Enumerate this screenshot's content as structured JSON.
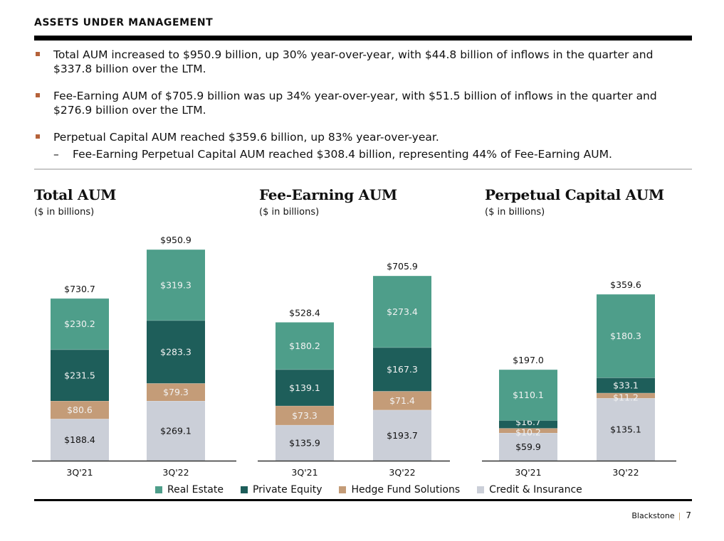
{
  "header": {
    "title": "ASSETS UNDER MANAGEMENT"
  },
  "bullets": [
    {
      "text": "Total AUM increased to $950.9 billion, up 30% year-over-year, with $44.8 billion of inflows in the quarter and $337.8 billion over the LTM."
    },
    {
      "text": "Fee-Earning AUM of $705.9 billion was up 34% year-over-year, with $51.5 billion of inflows in the quarter and $276.9 billion over the LTM."
    },
    {
      "text": "Perpetual Capital AUM reached $359.6 billion, up 83% year-over-year.",
      "sub": {
        "dash": "–",
        "text": "Fee-Earning Perpetual Capital AUM reached $308.4 billion, representing 44% of Fee-Earning AUM."
      }
    }
  ],
  "colors": {
    "Real Estate": "#4e9e8a",
    "Private Equity": "#1e5e5a",
    "Hedge Fund Solutions": "#c49c78",
    "Credit & Insurance": "#cbcfd8",
    "bullet": "#b5623a"
  },
  "legend": [
    {
      "label": "Real Estate"
    },
    {
      "label": "Private Equity"
    },
    {
      "label": "Hedge Fund Solutions"
    },
    {
      "label": "Credit & Insurance"
    }
  ],
  "chart_data": [
    {
      "type": "bar",
      "stacked": true,
      "title": "Total AUM",
      "subtitle": "($ in billions)",
      "categories": [
        "3Q'21",
        "3Q'22"
      ],
      "series": [
        {
          "name": "Credit & Insurance",
          "values": [
            188.4,
            269.1
          ],
          "labels": [
            "$188.4",
            "$269.1"
          ]
        },
        {
          "name": "Hedge Fund Solutions",
          "values": [
            80.6,
            79.3
          ],
          "labels": [
            "$80.6",
            "$79.3"
          ]
        },
        {
          "name": "Private Equity",
          "values": [
            231.5,
            283.3
          ],
          "labels": [
            "$231.5",
            "$283.3"
          ]
        },
        {
          "name": "Real Estate",
          "values": [
            230.2,
            319.3
          ],
          "labels": [
            "$230.2",
            "$319.3"
          ]
        }
      ],
      "totals": [
        730.7,
        950.9
      ],
      "total_labels": [
        "$730.7",
        "$950.9"
      ],
      "ylim": [
        0,
        950.9
      ],
      "legend": "bottom"
    },
    {
      "type": "bar",
      "stacked": true,
      "title": "Fee-Earning AUM",
      "subtitle": "($ in billions)",
      "categories": [
        "3Q'21",
        "3Q'22"
      ],
      "series": [
        {
          "name": "Credit & Insurance",
          "values": [
            135.9,
            193.7
          ],
          "labels": [
            "$135.9",
            "$193.7"
          ]
        },
        {
          "name": "Hedge Fund Solutions",
          "values": [
            73.3,
            71.4
          ],
          "labels": [
            "$73.3",
            "$71.4"
          ]
        },
        {
          "name": "Private Equity",
          "values": [
            139.1,
            167.3
          ],
          "labels": [
            "$139.1",
            "$167.3"
          ]
        },
        {
          "name": "Real Estate",
          "values": [
            180.2,
            273.4
          ],
          "labels": [
            "$180.2",
            "$273.4"
          ]
        }
      ],
      "totals": [
        528.4,
        705.9
      ],
      "total_labels": [
        "$528.4",
        "$705.9"
      ],
      "ylim": [
        0,
        705.9
      ],
      "legend": "bottom"
    },
    {
      "type": "bar",
      "stacked": true,
      "title": "Perpetual Capital AUM",
      "subtitle": "($ in billions)",
      "categories": [
        "3Q'21",
        "3Q'22"
      ],
      "series": [
        {
          "name": "Credit & Insurance",
          "values": [
            59.9,
            135.1
          ],
          "labels": [
            "$59.9",
            "$135.1"
          ]
        },
        {
          "name": "Hedge Fund Solutions",
          "values": [
            10.2,
            11.2
          ],
          "labels": [
            "$10.2",
            "$11.2"
          ]
        },
        {
          "name": "Private Equity",
          "values": [
            16.7,
            33.1
          ],
          "labels": [
            "$16.7",
            "$33.1"
          ]
        },
        {
          "name": "Real Estate",
          "values": [
            110.1,
            180.3
          ],
          "labels": [
            "$110.1",
            "$180.3"
          ]
        }
      ],
      "totals": [
        197.0,
        359.6
      ],
      "total_labels": [
        "$197.0",
        "$359.6"
      ],
      "ylim": [
        0,
        359.6
      ],
      "legend": "bottom"
    }
  ],
  "footer": {
    "brand": "Blackstone",
    "separator": "|",
    "page": "7"
  }
}
